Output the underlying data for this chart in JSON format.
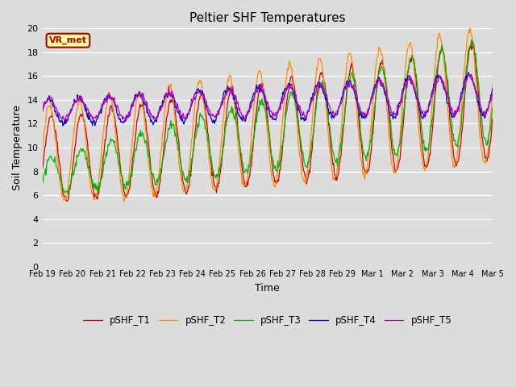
{
  "title": "Peltier SHF Temperatures",
  "xlabel": "Time",
  "ylabel": "Soil Temperature",
  "ylim": [
    0,
    20
  ],
  "yticks": [
    0,
    2,
    4,
    6,
    8,
    10,
    12,
    14,
    16,
    18,
    20
  ],
  "bg_color": "#dcdcdc",
  "plot_bg_color": "#dcdcdc",
  "series_colors": [
    "#cc0000",
    "#ff8c00",
    "#00bb00",
    "#0000cc",
    "#bb00bb"
  ],
  "series_labels": [
    "pSHF_T1",
    "pSHF_T2",
    "pSHF_T3",
    "pSHF_T4",
    "pSHF_T5"
  ],
  "annotation_text": "VR_met",
  "annotation_box_color": "#ffff99",
  "annotation_border_color": "#aa0000",
  "x_tick_labels": [
    "Feb 19",
    "Feb 20",
    "Feb 21",
    "Feb 22",
    "Feb 23",
    "Feb 24",
    "Feb 25",
    "Feb 26",
    "Feb 27",
    "Feb 28",
    "Feb 29",
    "Mar 1",
    "Mar 2",
    "Mar 3",
    "Mar 4",
    "Mar 5"
  ]
}
